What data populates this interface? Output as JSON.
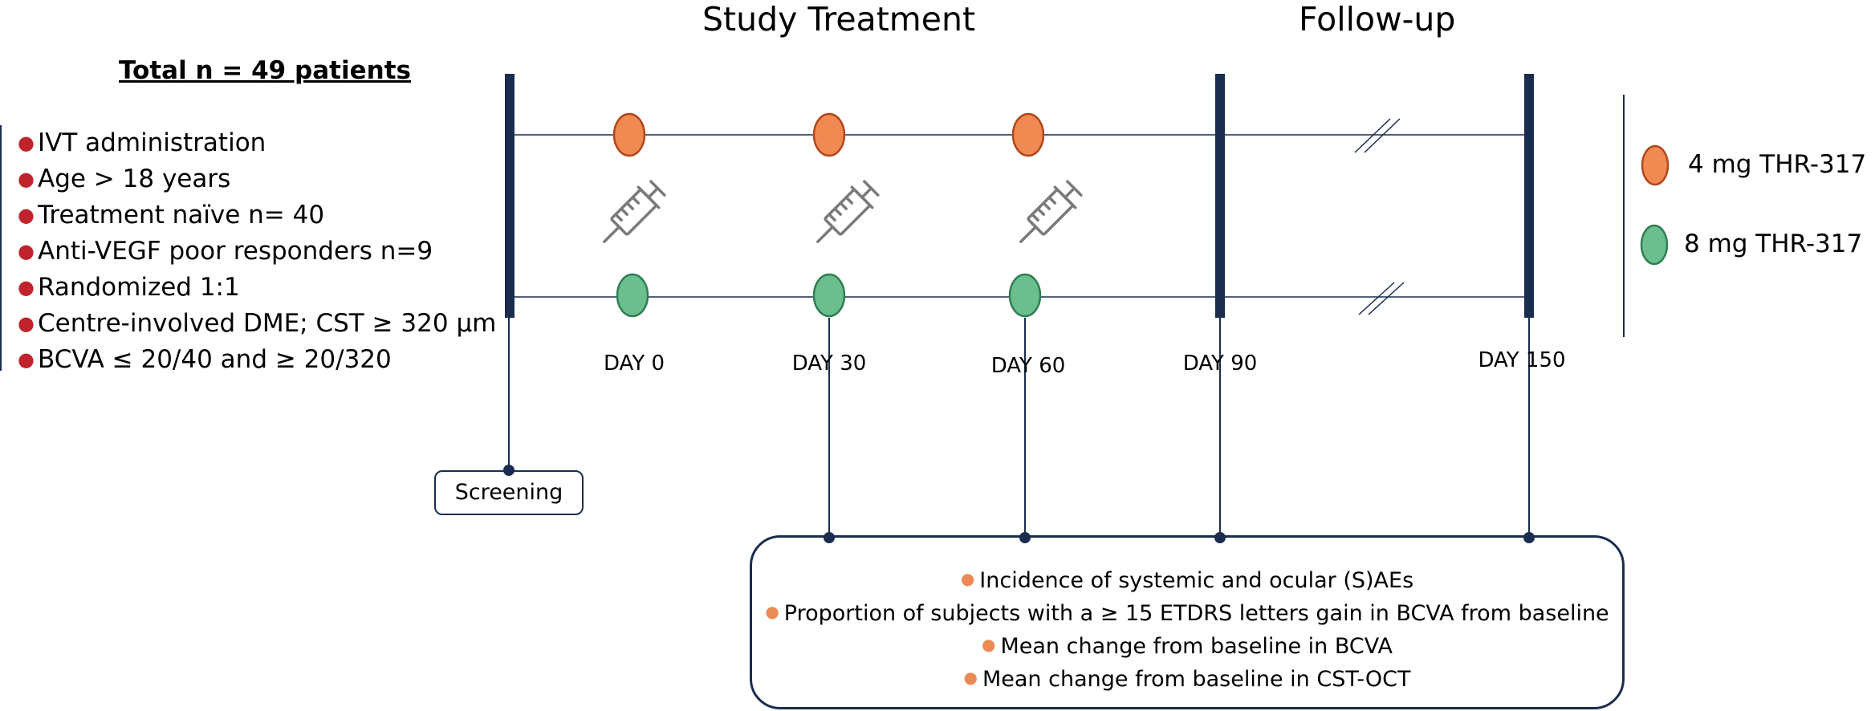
{
  "phases": {
    "treatment": "Study Treatment",
    "followup": "Follow-up"
  },
  "population": {
    "total": "Total n = 49 patients",
    "criteria": [
      "IVT administration",
      "Age > 18 years",
      "Treatment naïve n= 40",
      "Anti-VEGF poor responders n=9",
      "Randomized 1:1",
      "Centre-involved DME; CST ≥ 320 µm",
      "BCVA ≤ 20/40 and ≥ 20/320"
    ]
  },
  "timeline": {
    "days": [
      "DAY 0",
      "DAY 30",
      "DAY 60",
      "DAY 90",
      "DAY 150"
    ],
    "screening": "Screening"
  },
  "legend": {
    "items": [
      {
        "label": "4 mg THR-317",
        "color": "#f08a52"
      },
      {
        "label": "8 mg THR-317",
        "color": "#6bbf8e"
      }
    ]
  },
  "outcomes": [
    "Incidence of systemic and ocular (S)AEs",
    "Proportion of subjects with a ≥ 15 ETDRS letters gain in BCVA from baseline",
    "Mean change from baseline in BCVA",
    "Mean change from baseline in CST-OCT"
  ],
  "colors": {
    "navy": "#1a2d4f",
    "orange_dose": "#f08a52",
    "green_dose": "#6bbf8e",
    "bullet_red": "#c0232c",
    "bullet_orange": "#ec8a55"
  }
}
